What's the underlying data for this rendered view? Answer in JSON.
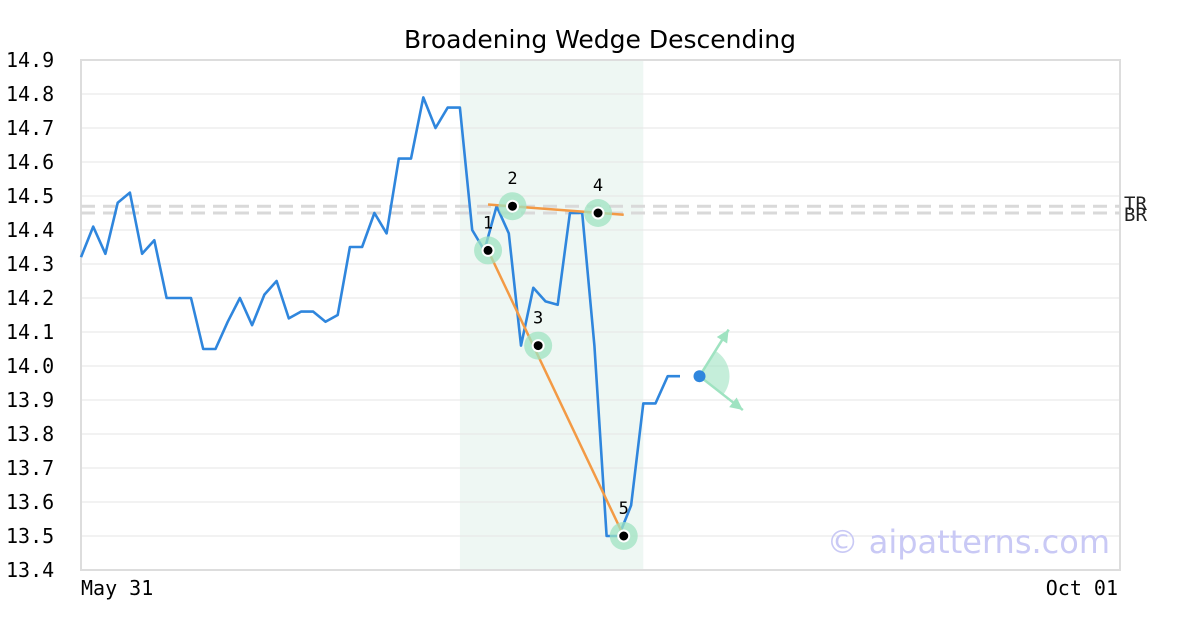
{
  "chart_data": {
    "type": "line",
    "title": "Broadening Wedge Descending",
    "xlabel": "",
    "ylabel": "",
    "ylim": [
      13.4,
      14.9
    ],
    "yticks": [
      "14.9",
      "14.8",
      "14.7",
      "14.6",
      "14.5",
      "14.4",
      "14.3",
      "14.2",
      "14.1",
      "14.0",
      "13.9",
      "13.8",
      "13.7",
      "13.6",
      "13.5",
      "13.4"
    ],
    "x_range_labels": [
      "May 31",
      "Oct 01"
    ],
    "n_points": 86,
    "grid": true,
    "series": [
      {
        "color": "#2f86dd",
        "values": [
          14.32,
          14.41,
          14.33,
          14.48,
          14.51,
          14.33,
          14.37,
          14.2,
          14.2,
          14.2,
          14.05,
          14.05,
          14.13,
          14.2,
          14.12,
          14.21,
          14.25,
          14.14,
          14.16,
          14.16,
          14.13,
          14.15,
          14.35,
          14.35,
          14.45,
          14.39,
          14.61,
          14.61,
          14.79,
          14.7,
          14.76,
          14.76,
          14.4,
          14.34,
          14.47,
          14.39,
          14.06,
          14.23,
          14.19,
          14.18,
          14.45,
          14.45,
          14.06,
          13.5,
          13.5,
          13.59,
          13.89,
          13.89,
          13.97,
          13.97
        ]
      }
    ],
    "highlight_region": {
      "from_index": 31,
      "to_index": 46,
      "color": "#eef7f3"
    },
    "levels": [
      {
        "label": "TR",
        "value": 14.47
      },
      {
        "label": "BR",
        "value": 14.45
      }
    ],
    "pattern_points": [
      {
        "label": "1",
        "index": 33.3,
        "value": 14.34
      },
      {
        "label": "2",
        "index": 35.3,
        "value": 14.47
      },
      {
        "label": "3",
        "index": 37.4,
        "value": 14.06
      },
      {
        "label": "4",
        "index": 42.3,
        "value": 14.45
      },
      {
        "label": "5",
        "index": 44.4,
        "value": 13.5
      }
    ],
    "trend_lines": [
      {
        "from": {
          "index": 33.3,
          "value": 14.475
        },
        "to": {
          "index": 44.4,
          "value": 14.445
        },
        "color": "#f39a45"
      },
      {
        "from": {
          "index": 33.3,
          "value": 14.34
        },
        "to": {
          "index": 44.4,
          "value": 13.5
        },
        "color": "#f39a45"
      }
    ],
    "current_point": {
      "index": 50.6,
      "value": 13.97,
      "color": "#2f86dd"
    },
    "projection_color": "#9fe3c1",
    "watermark": "© aipatterns.com"
  }
}
